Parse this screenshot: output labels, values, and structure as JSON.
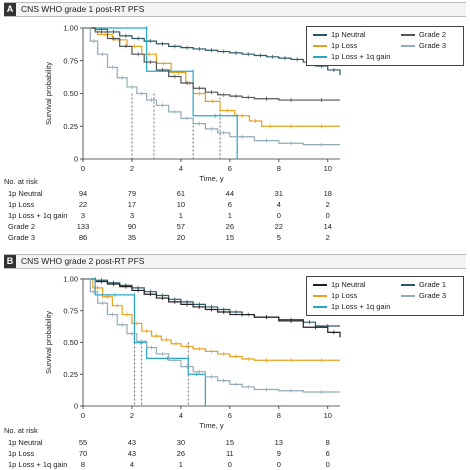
{
  "chart_data": [
    {
      "type": "line",
      "panel_letter": "A",
      "title": "CNS WHO grade 1 post-RT PFS",
      "xlabel": "Time, y",
      "ylabel": "Survival probability",
      "xlim": [
        0,
        10.5
      ],
      "ylim": [
        0,
        1.0
      ],
      "xticks": [
        0,
        2,
        4,
        6,
        8,
        10
      ],
      "yticks": [
        "0",
        "0.25",
        "0.50",
        "0.75",
        "1.00"
      ],
      "legend_position": "top-right",
      "legend": [
        {
          "name": "1p Neutral",
          "color": "#2d5866"
        },
        {
          "name": "1p Loss",
          "color": "#e8a21a"
        },
        {
          "name": "1p Loss + 1q gain",
          "color": "#27a7c9"
        },
        {
          "name": "Grade 2",
          "color": "#555555"
        },
        {
          "name": "Grade 3",
          "color": "#92acb5"
        }
      ],
      "series": [
        {
          "name": "1p Neutral",
          "color": "#2d5866",
          "x": [
            0,
            0.5,
            1.0,
            1.5,
            2.0,
            2.5,
            3.0,
            3.5,
            4.0,
            4.5,
            5.0,
            5.5,
            6.0,
            6.5,
            7.0,
            7.5,
            8.0,
            8.5,
            9.0,
            9.5,
            10.0,
            10.5
          ],
          "y": [
            1.0,
            0.99,
            0.97,
            0.94,
            0.92,
            0.9,
            0.88,
            0.86,
            0.85,
            0.84,
            0.83,
            0.82,
            0.81,
            0.8,
            0.79,
            0.78,
            0.77,
            0.76,
            0.74,
            0.71,
            0.68,
            0.64
          ]
        },
        {
          "name": "1p Loss",
          "color": "#e8a21a",
          "x": [
            0,
            0.6,
            1.2,
            1.8,
            2.4,
            3.0,
            3.6,
            4.2,
            4.5,
            5.0,
            5.6,
            6.2,
            6.8,
            7.3,
            8.0,
            9.0,
            10.5
          ],
          "y": [
            1.0,
            0.95,
            0.91,
            0.86,
            0.8,
            0.73,
            0.66,
            0.58,
            0.5,
            0.44,
            0.37,
            0.33,
            0.29,
            0.25,
            0.25,
            0.25,
            0.25
          ]
        },
        {
          "name": "1p Loss + 1q gain",
          "color": "#27a7c9",
          "x": [
            0,
            2.6,
            2.6,
            4.5,
            4.5,
            6.3,
            6.3
          ],
          "y": [
            1.0,
            1.0,
            0.67,
            0.67,
            0.33,
            0.33,
            0.0
          ]
        },
        {
          "name": "Grade 2",
          "color": "#555555",
          "x": [
            0,
            0.5,
            1.0,
            1.5,
            2.0,
            2.5,
            3.0,
            3.5,
            4.0,
            4.5,
            5.0,
            5.5,
            6.0,
            6.5,
            7.0,
            8.0,
            9.0,
            10.5
          ],
          "y": [
            1.0,
            0.97,
            0.92,
            0.86,
            0.8,
            0.74,
            0.68,
            0.63,
            0.58,
            0.54,
            0.51,
            0.49,
            0.48,
            0.47,
            0.46,
            0.45,
            0.45,
            0.45
          ]
        },
        {
          "name": "Grade 3",
          "color": "#92acb5",
          "x": [
            0,
            0.3,
            0.6,
            1.0,
            1.4,
            1.8,
            2.2,
            2.6,
            3.0,
            3.5,
            4.0,
            4.5,
            5.0,
            5.5,
            6.0,
            7.0,
            8.0,
            9.0,
            10.5
          ],
          "y": [
            1.0,
            0.9,
            0.8,
            0.7,
            0.62,
            0.55,
            0.5,
            0.45,
            0.41,
            0.36,
            0.31,
            0.27,
            0.23,
            0.2,
            0.17,
            0.14,
            0.12,
            0.11,
            0.11
          ]
        }
      ],
      "median_lines_x": [
        2.0,
        2.9,
        4.5,
        5.6
      ],
      "risk_table": {
        "heading": "No. at risk",
        "times": [
          0,
          2,
          4,
          6,
          8,
          10
        ],
        "rows": [
          {
            "label": "1p Neutral",
            "values": [
              "94",
              "79",
              "61",
              "44",
              "31",
              "18"
            ]
          },
          {
            "label": "1p Loss",
            "values": [
              "22",
              "17",
              "10",
              "6",
              "4",
              "2"
            ]
          },
          {
            "label": "1p Loss + 1q gain",
            "values": [
              "3",
              "3",
              "1",
              "1",
              "0",
              "0"
            ]
          },
          {
            "label": "Grade 2",
            "values": [
              "133",
              "90",
              "57",
              "26",
              "22",
              "14"
            ]
          },
          {
            "label": "Grade 3",
            "values": [
              "86",
              "35",
              "20",
              "15",
              "5",
              "2"
            ]
          }
        ]
      }
    },
    {
      "type": "line",
      "panel_letter": "B",
      "title": "CNS WHO grade 2 post-RT PFS",
      "xlabel": "Time, y",
      "ylabel": "Survival probability",
      "xlim": [
        0,
        10.5
      ],
      "ylim": [
        0,
        1.0
      ],
      "xticks": [
        0,
        2,
        4,
        6,
        8,
        10
      ],
      "yticks": [
        "0",
        "0.25",
        "0.50",
        "0.75",
        "1.00"
      ],
      "legend_position": "top-right",
      "legend": [
        {
          "name": "1p Neutral",
          "color": "#222222"
        },
        {
          "name": "1p Loss",
          "color": "#e8a21a"
        },
        {
          "name": "1p Loss + 1q gain",
          "color": "#27a7c9"
        },
        {
          "name": "Grade 1",
          "color": "#2d5866"
        },
        {
          "name": "Grade 3",
          "color": "#92acb5"
        }
      ],
      "series": [
        {
          "name": "Grade 1",
          "color": "#2d5866",
          "x": [
            0,
            0.5,
            1.0,
            1.5,
            2.0,
            2.5,
            3.0,
            3.5,
            4.0,
            4.5,
            5.0,
            5.5,
            6.0,
            6.5,
            7.0,
            8.0,
            9.0,
            9.5,
            10.5
          ],
          "y": [
            1.0,
            0.99,
            0.97,
            0.95,
            0.93,
            0.9,
            0.87,
            0.84,
            0.82,
            0.8,
            0.78,
            0.76,
            0.74,
            0.72,
            0.7,
            0.68,
            0.66,
            0.63,
            0.63
          ]
        },
        {
          "name": "1p Neutral",
          "color": "#222222",
          "x": [
            0,
            0.5,
            1.0,
            1.5,
            2.0,
            2.5,
            3.0,
            3.5,
            4.0,
            4.5,
            5.0,
            5.5,
            6.0,
            7.0,
            8.0,
            9.0,
            10.0,
            10.5
          ],
          "y": [
            1.0,
            0.98,
            0.96,
            0.94,
            0.91,
            0.88,
            0.85,
            0.82,
            0.8,
            0.78,
            0.76,
            0.74,
            0.72,
            0.7,
            0.67,
            0.62,
            0.58,
            0.54
          ]
        },
        {
          "name": "1p Loss",
          "color": "#e8a21a",
          "x": [
            0,
            0.4,
            0.8,
            1.2,
            1.6,
            2.0,
            2.4,
            2.8,
            3.2,
            3.6,
            4.0,
            4.5,
            5.0,
            5.5,
            6.0,
            6.5,
            7.0,
            8.0,
            9.0,
            10.5
          ],
          "y": [
            1.0,
            0.93,
            0.86,
            0.79,
            0.72,
            0.65,
            0.59,
            0.55,
            0.52,
            0.49,
            0.47,
            0.45,
            0.43,
            0.41,
            0.39,
            0.37,
            0.36,
            0.36,
            0.36,
            0.36
          ]
        },
        {
          "name": "1p Loss + 1q gain",
          "color": "#27a7c9",
          "x": [
            0,
            0.5,
            0.5,
            2.1,
            2.1,
            2.6,
            2.6,
            4.3,
            4.3,
            5.0,
            5.0
          ],
          "y": [
            1.0,
            1.0,
            0.875,
            0.875,
            0.5,
            0.5,
            0.375,
            0.375,
            0.25,
            0.25,
            0.0
          ]
        },
        {
          "name": "Grade 3",
          "color": "#92acb5",
          "x": [
            0,
            0.3,
            0.6,
            1.0,
            1.4,
            1.8,
            2.2,
            2.6,
            3.0,
            3.5,
            4.0,
            4.5,
            5.0,
            5.5,
            6.0,
            6.5,
            7.0,
            8.0,
            9.0,
            10.5
          ],
          "y": [
            1.0,
            0.9,
            0.81,
            0.72,
            0.64,
            0.57,
            0.51,
            0.46,
            0.41,
            0.36,
            0.31,
            0.27,
            0.23,
            0.2,
            0.17,
            0.15,
            0.13,
            0.12,
            0.11,
            0.11
          ]
        }
      ],
      "median_lines_x": [
        2.1,
        2.4,
        4.3
      ],
      "risk_table": {
        "heading": "No. at risk",
        "times": [
          0,
          2,
          4,
          6,
          8,
          10
        ],
        "rows": [
          {
            "label": "1p Neutral",
            "values": [
              "55",
              "43",
              "30",
              "15",
              "13",
              "8"
            ]
          },
          {
            "label": "1p Loss",
            "values": [
              "70",
              "43",
              "26",
              "11",
              "9",
              "6"
            ]
          },
          {
            "label": "1p Loss + 1q gain",
            "values": [
              "8",
              "4",
              "1",
              "0",
              "0",
              "0"
            ]
          }
        ]
      }
    }
  ]
}
